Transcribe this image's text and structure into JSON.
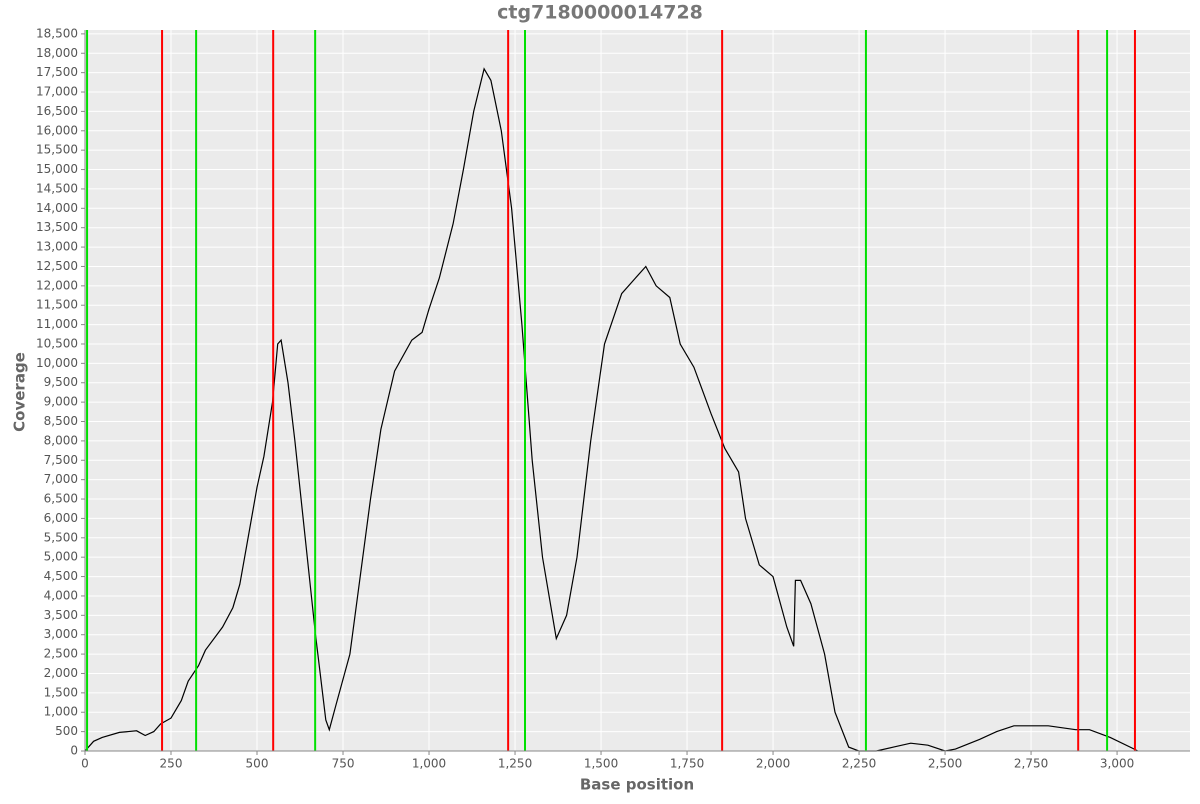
{
  "chart_data": {
    "type": "line",
    "title": "ctg7180000014728",
    "x_label": "Base position",
    "y_label": "Coverage",
    "x": [
      0,
      25,
      50,
      100,
      150,
      175,
      200,
      220,
      250,
      280,
      300,
      330,
      350,
      400,
      430,
      450,
      470,
      500,
      520,
      545,
      560,
      570,
      590,
      610,
      640,
      670,
      700,
      710,
      730,
      770,
      800,
      830,
      860,
      900,
      950,
      980,
      1000,
      1030,
      1070,
      1100,
      1130,
      1160,
      1180,
      1210,
      1240,
      1270,
      1300,
      1330,
      1370,
      1400,
      1430,
      1470,
      1510,
      1560,
      1600,
      1630,
      1660,
      1700,
      1730,
      1770,
      1820,
      1860,
      1900,
      1920,
      1960,
      2000,
      2040,
      2060,
      2065,
      2080,
      2110,
      2150,
      2180,
      2220,
      2250,
      2300,
      2350,
      2400,
      2450,
      2500,
      2530,
      2600,
      2650,
      2700,
      2750,
      2800,
      2880,
      2920,
      2980,
      3050,
      3060
    ],
    "series": [
      {
        "name": "Coverage",
        "color": "#000000",
        "values": [
          0,
          250,
          350,
          480,
          520,
          400,
          500,
          700,
          850,
          1300,
          1800,
          2200,
          2600,
          3200,
          3700,
          4300,
          5300,
          6800,
          7600,
          9000,
          10500,
          10600,
          9500,
          8000,
          5500,
          3000,
          800,
          550,
          1200,
          2500,
          4500,
          6500,
          8300,
          9800,
          10600,
          10800,
          11400,
          12200,
          13600,
          15000,
          16500,
          17600,
          17300,
          16000,
          14000,
          11000,
          7500,
          5000,
          2900,
          3500,
          5000,
          8000,
          10500,
          11800,
          12200,
          12500,
          12000,
          11700,
          10500,
          9900,
          8700,
          7800,
          7200,
          6000,
          4800,
          4500,
          3200,
          2700,
          4400,
          4400,
          3800,
          2500,
          1000,
          100,
          0,
          0,
          100,
          200,
          150,
          0,
          50,
          300,
          500,
          650,
          650,
          650,
          550,
          550,
          350,
          50,
          0
        ]
      }
    ],
    "markers": [
      {
        "color": "#ff0000",
        "x": [
          224,
          547,
          1230,
          1852,
          2887,
          3052
        ]
      },
      {
        "color": "#00e000",
        "x": [
          6,
          323,
          669,
          1279,
          2270,
          2971
        ]
      }
    ],
    "xlim": [
      0,
      3212
    ],
    "ylim": [
      0,
      18600
    ],
    "grid": true,
    "xticks": [
      0,
      250,
      500,
      750,
      {
        "value": 1000,
        "label": "1,000"
      },
      {
        "value": 1250,
        "label": "1,250"
      },
      {
        "value": 1500,
        "label": "1,500"
      },
      {
        "value": 1750,
        "label": "1,750"
      },
      {
        "value": 2000,
        "label": "2,000"
      },
      {
        "value": 2250,
        "label": "2,250"
      },
      {
        "value": 2500,
        "label": "2,500"
      },
      {
        "value": 2750,
        "label": "2,750"
      },
      {
        "value": 3000,
        "label": "3,000"
      }
    ],
    "yticks": [
      0,
      500,
      {
        "value": 1000,
        "label": "1,000"
      },
      {
        "value": 1500,
        "label": "1,500"
      },
      {
        "value": 2000,
        "label": "2,000"
      },
      {
        "value": 2500,
        "label": "2,500"
      },
      {
        "value": 3000,
        "label": "3,000"
      },
      {
        "value": 3500,
        "label": "3,500"
      },
      {
        "value": 4000,
        "label": "4,000"
      },
      {
        "value": 4500,
        "label": "4,500"
      },
      {
        "value": 5000,
        "label": "5,000"
      },
      {
        "value": 5500,
        "label": "5,500"
      },
      {
        "value": 6000,
        "label": "6,000"
      },
      {
        "value": 6500,
        "label": "6,500"
      },
      {
        "value": 7000,
        "label": "7,000"
      },
      {
        "value": 7500,
        "label": "7,500"
      },
      {
        "value": 8000,
        "label": "8,000"
      },
      {
        "value": 8500,
        "label": "8,500"
      },
      {
        "value": 9000,
        "label": "9,000"
      },
      {
        "value": 9500,
        "label": "9,500"
      },
      {
        "value": 10000,
        "label": "10,000"
      },
      {
        "value": 10500,
        "label": "10,500"
      },
      {
        "value": 11000,
        "label": "11,000"
      },
      {
        "value": 11500,
        "label": "11,500"
      },
      {
        "value": 12000,
        "label": "12,000"
      },
      {
        "value": 12500,
        "label": "12,500"
      },
      {
        "value": 13000,
        "label": "13,000"
      },
      {
        "value": 13500,
        "label": "13,500"
      },
      {
        "value": 14000,
        "label": "14,000"
      },
      {
        "value": 14500,
        "label": "14,500"
      },
      {
        "value": 15000,
        "label": "15,000"
      },
      {
        "value": 15500,
        "label": "15,500"
      },
      {
        "value": 16000,
        "label": "16,000"
      },
      {
        "value": 16500,
        "label": "16,500"
      },
      {
        "value": 17000,
        "label": "17,000"
      },
      {
        "value": 17500,
        "label": "17,500"
      },
      {
        "value": 18000,
        "label": "18,000"
      },
      {
        "value": 18500,
        "label": "18,500"
      }
    ]
  }
}
